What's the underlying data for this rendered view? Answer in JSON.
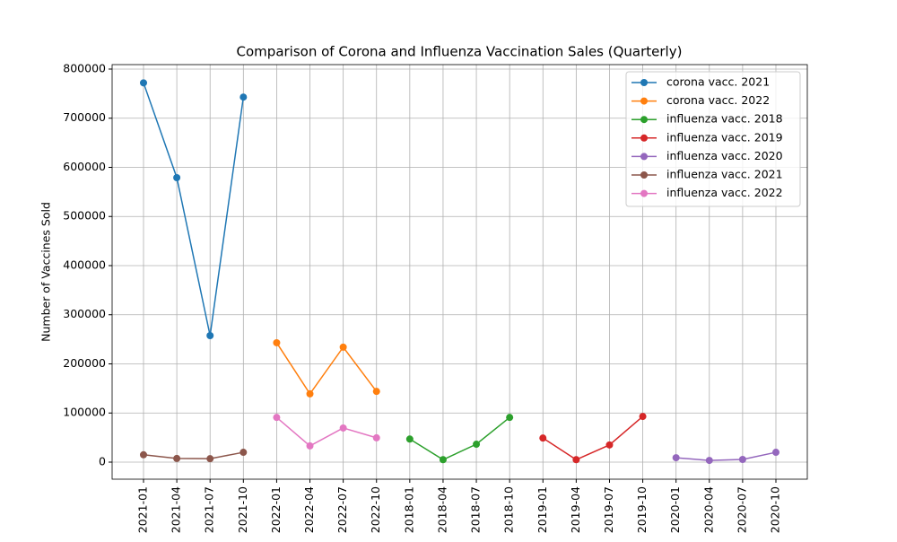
{
  "chart_data": {
    "type": "line",
    "title": "Comparison of Corona and Influenza Vaccination Sales (Quarterly)",
    "y_label": "Number of Vaccines Sold",
    "categories": [
      "2021-01",
      "2021-04",
      "2021-07",
      "2021-10",
      "2022-01",
      "2022-04",
      "2022-07",
      "2022-10",
      "2018-01",
      "2018-04",
      "2018-07",
      "2018-10",
      "2019-01",
      "2019-04",
      "2019-07",
      "2019-10",
      "2020-01",
      "2020-04",
      "2020-07",
      "2020-10"
    ],
    "series": [
      {
        "name": "corona vacc. 2021",
        "color": "#1f77b4",
        "values": [
          772000,
          579000,
          257500,
          743000,
          null,
          null,
          null,
          null,
          null,
          null,
          null,
          null,
          null,
          null,
          null,
          null,
          null,
          null,
          null,
          null
        ]
      },
      {
        "name": "corona vacc. 2022",
        "color": "#ff7f0e",
        "values": [
          null,
          null,
          null,
          null,
          243000,
          139000,
          234000,
          144000,
          null,
          null,
          null,
          null,
          null,
          null,
          null,
          null,
          null,
          null,
          null,
          null
        ]
      },
      {
        "name": "influenza vacc. 2018",
        "color": "#2ca02c",
        "values": [
          null,
          null,
          null,
          null,
          null,
          null,
          null,
          null,
          47000,
          5000,
          36500,
          91000,
          null,
          null,
          null,
          null,
          null,
          null,
          null,
          null
        ]
      },
      {
        "name": "influenza vacc. 2019",
        "color": "#d62728",
        "values": [
          null,
          null,
          null,
          null,
          null,
          null,
          null,
          null,
          null,
          null,
          null,
          null,
          49000,
          5000,
          35000,
          93000,
          null,
          null,
          null,
          null
        ]
      },
      {
        "name": "influenza vacc. 2020",
        "color": "#9467bd",
        "values": [
          null,
          null,
          null,
          null,
          null,
          null,
          null,
          null,
          null,
          null,
          null,
          null,
          null,
          null,
          null,
          null,
          9000,
          3500,
          5500,
          20000
        ]
      },
      {
        "name": "influenza vacc. 2021",
        "color": "#8c564b",
        "values": [
          15000,
          7500,
          7000,
          20000,
          null,
          null,
          null,
          null,
          null,
          null,
          null,
          null,
          null,
          null,
          null,
          null,
          null,
          null,
          null,
          null
        ]
      },
      {
        "name": "influenza vacc. 2022",
        "color": "#e377c2",
        "values": [
          null,
          null,
          null,
          null,
          91000,
          33000,
          69500,
          49500,
          null,
          null,
          null,
          null,
          null,
          null,
          null,
          null,
          null,
          null,
          null,
          null
        ]
      }
    ],
    "ylim": [
      -34700,
      809100
    ],
    "yticks": [
      0,
      100000,
      200000,
      300000,
      400000,
      500000,
      600000,
      700000,
      800000
    ],
    "grid": true,
    "legend": "upper right"
  }
}
